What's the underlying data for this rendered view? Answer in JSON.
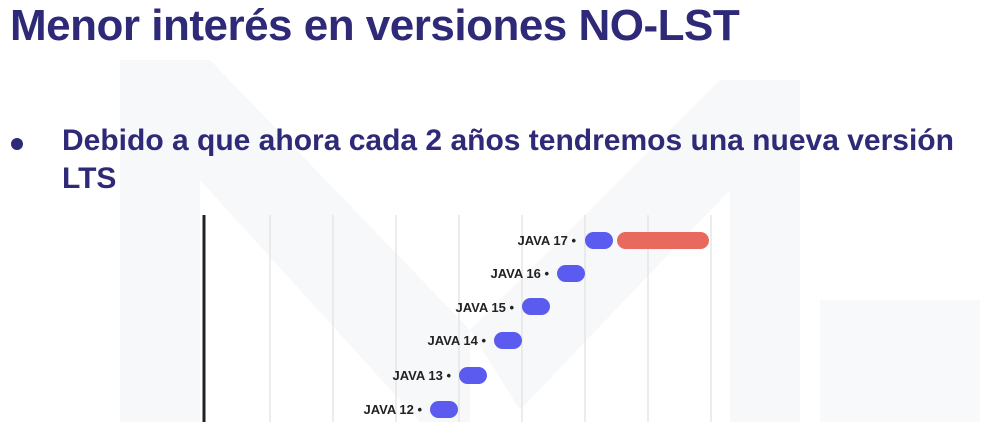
{
  "slide": {
    "title": "Menor interés en versiones NO-LST",
    "bullet": "Debido a que ahora cada 2 años tendremos una nueva versión LTS"
  },
  "colors": {
    "title": "#2e2a78",
    "bar_standard": "#5b5bf0",
    "bar_lts": "#e86a5e",
    "axis": "#222222",
    "grid": "#e6e6e6"
  },
  "timeline": {
    "versions": [
      {
        "label": "JAVA 17 •",
        "lts": true
      },
      {
        "label": "JAVA 16 •",
        "lts": false
      },
      {
        "label": "JAVA 15 •",
        "lts": false
      },
      {
        "label": "JAVA 14 •",
        "lts": false
      },
      {
        "label": "JAVA 13 •",
        "lts": false
      },
      {
        "label": "JAVA 12 •",
        "lts": false
      }
    ]
  }
}
